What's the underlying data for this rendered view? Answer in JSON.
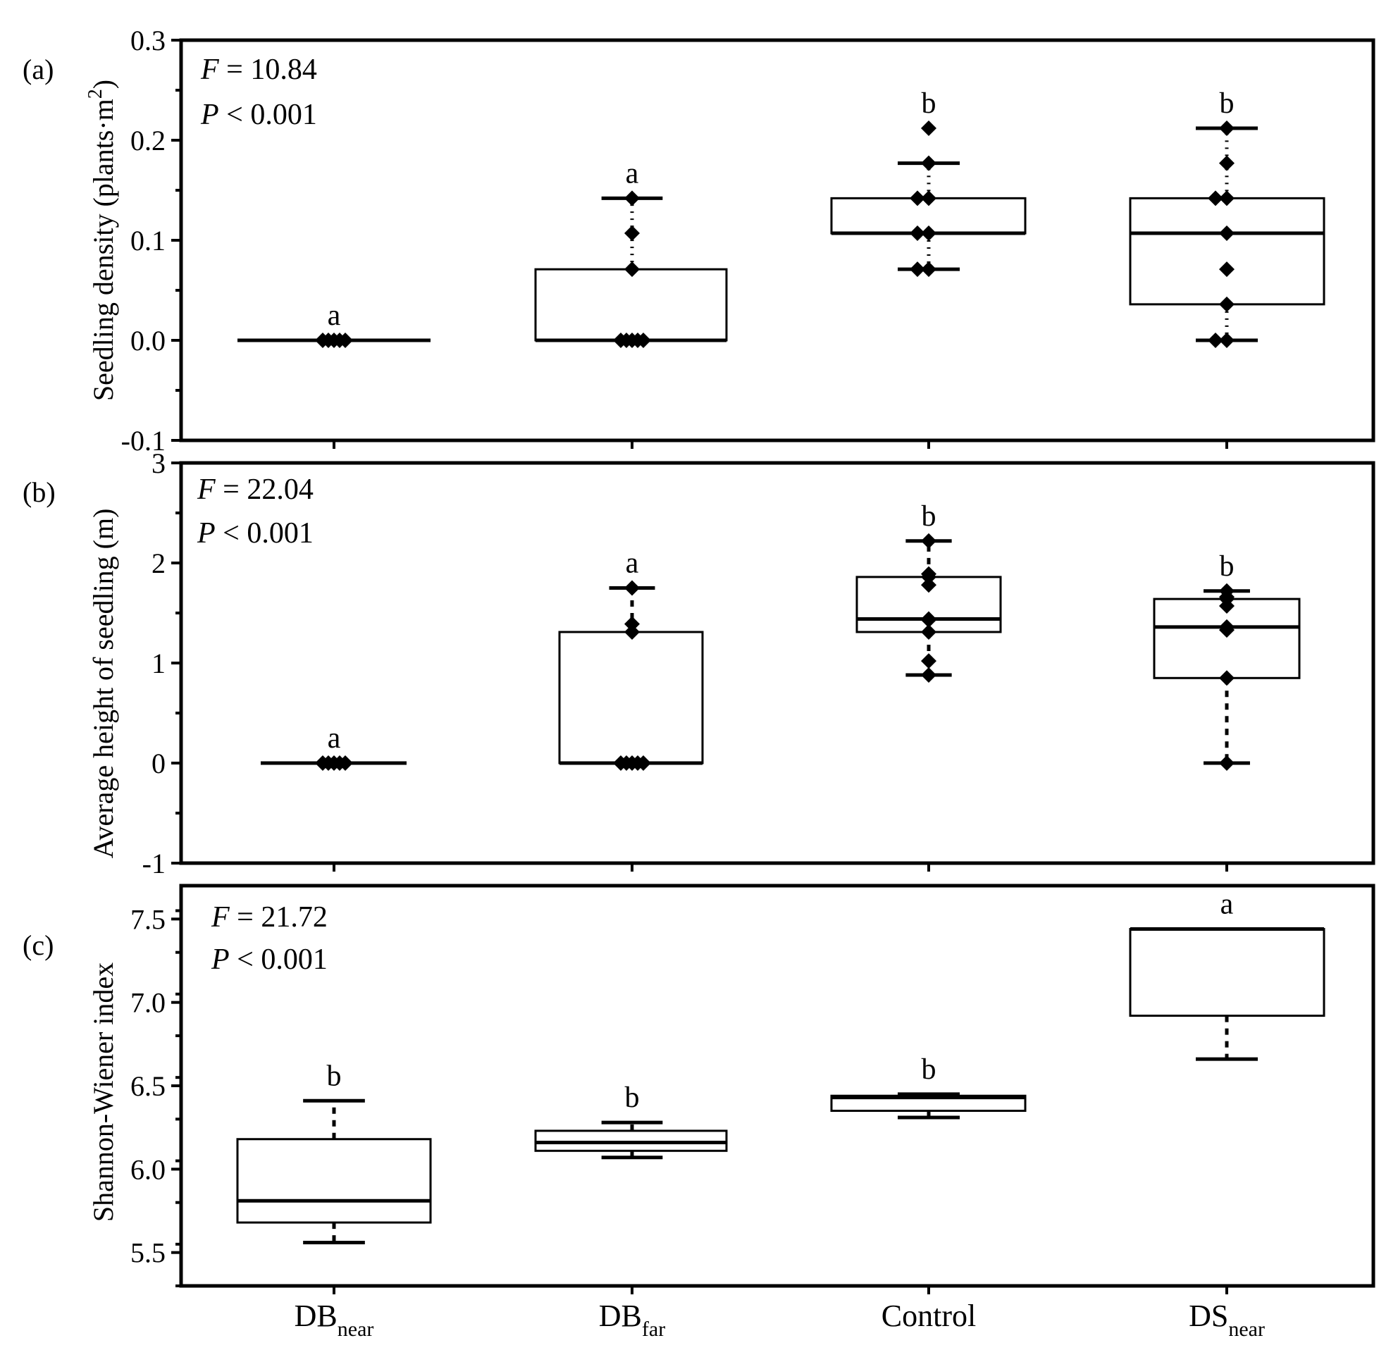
{
  "chart_data": [
    {
      "type": "box",
      "panel_label": "(a)",
      "ylabel_main": "Seedling density (plants·m",
      "ylabel_sup": "2",
      "ylabel_end": ")",
      "ylim": [
        -0.1,
        0.3
      ],
      "yticks": [
        -0.1,
        0.0,
        0.1,
        0.2,
        0.3
      ],
      "ytick_labels": [
        "-0.1",
        "0.0",
        "0.1",
        "0.2",
        "0.3"
      ],
      "minor_step": 0.05,
      "stat_F_sym": "F",
      "stat_F_text": " = 10.84",
      "stat_P_sym": "P",
      "stat_P_text": " < 0.001",
      "whisker_style": "dotted",
      "groups": [
        {
          "q1": 0,
          "median": 0,
          "q3": 0,
          "whisker_low": 0,
          "whisker_high": 0,
          "letter": "a",
          "letter_y": 0.0,
          "points": [
            0,
            0,
            0,
            0,
            0
          ]
        },
        {
          "q1": 0,
          "median": 0,
          "q3": 0.071,
          "whisker_low": 0,
          "whisker_high": 0.142,
          "letter": "a",
          "letter_y": 0.142,
          "points": [
            0,
            0,
            0,
            0,
            0,
            0.071,
            0.107,
            0.142
          ]
        },
        {
          "q1": 0.107,
          "median": 0.107,
          "q3": 0.142,
          "whisker_low": 0.071,
          "whisker_high": 0.177,
          "letter": "b",
          "letter_y": 0.212,
          "points": [
            0.071,
            0.071,
            0.107,
            0.107,
            0.142,
            0.142,
            0.177,
            0.212
          ]
        },
        {
          "q1": 0.036,
          "median": 0.107,
          "q3": 0.142,
          "whisker_low": 0,
          "whisker_high": 0.212,
          "letter": "b",
          "letter_y": 0.212,
          "points": [
            0,
            0,
            0.036,
            0.071,
            0.107,
            0.142,
            0.142,
            0.177,
            0.212
          ]
        }
      ]
    },
    {
      "type": "box",
      "panel_label": "(b)",
      "ylabel_main": "Average height of seedling (m)",
      "ylim": [
        -1,
        3
      ],
      "yticks": [
        -1,
        0,
        1,
        2,
        3
      ],
      "ytick_labels": [
        "-1",
        "0",
        "1",
        "2",
        "3"
      ],
      "minor_step": 0.5,
      "stat_F_sym": "F",
      "stat_F_text": " = 22.04",
      "stat_P_sym": "P",
      "stat_P_text": " < 0.001",
      "whisker_style": "dashed",
      "groups": [
        {
          "q1": 0,
          "median": 0,
          "q3": 0,
          "whisker_low": 0,
          "whisker_high": 0,
          "letter": "a",
          "letter_y": 0.0,
          "points": [
            0,
            0,
            0,
            0,
            0
          ]
        },
        {
          "q1": 0,
          "median": 0,
          "q3": 1.31,
          "whisker_low": 0,
          "whisker_high": 1.75,
          "letter": "a",
          "letter_y": 1.75,
          "points": [
            0,
            0,
            0,
            0,
            0,
            1.31,
            1.39,
            1.75
          ]
        },
        {
          "q1": 1.31,
          "median": 1.44,
          "q3": 1.86,
          "whisker_low": 0.88,
          "whisker_high": 2.22,
          "letter": "b",
          "letter_y": 2.22,
          "points": [
            0.88,
            1.02,
            1.31,
            1.43,
            1.44,
            1.78,
            1.86,
            1.89,
            2.22
          ]
        },
        {
          "q1": 0.85,
          "median": 1.36,
          "q3": 1.64,
          "whisker_low": 0,
          "whisker_high": 1.72,
          "letter": "b",
          "letter_y": 1.72,
          "points": [
            0,
            0.85,
            1.33,
            1.36,
            1.57,
            1.64,
            1.66,
            1.72
          ]
        }
      ]
    },
    {
      "type": "box",
      "panel_label": "(c)",
      "ylabel_main": "Shannon-Wiener index",
      "ylim": [
        5.3,
        7.7
      ],
      "yticks": [
        5.5,
        6.0,
        6.5,
        7.0,
        7.5
      ],
      "ytick_labels": [
        "5.5",
        "6.0",
        "6.5",
        "7.0",
        "7.5"
      ],
      "minor_step": 0.25,
      "stat_F_sym": "F",
      "stat_F_text": " = 21.72",
      "stat_P_sym": "P",
      "stat_P_text": " < 0.001",
      "whisker_style": "dashed",
      "x_categories": [
        {
          "main": "DB",
          "sub": "near"
        },
        {
          "main": "DB",
          "sub": "far"
        },
        {
          "main": "Control",
          "sub": ""
        },
        {
          "main": "DS",
          "sub": "near"
        }
      ],
      "groups": [
        {
          "q1": 5.68,
          "median": 5.81,
          "q3": 6.18,
          "whisker_low": 5.56,
          "whisker_high": 6.41,
          "letter": "b",
          "letter_y": 6.41,
          "points": []
        },
        {
          "q1": 6.11,
          "median": 6.16,
          "q3": 6.23,
          "whisker_low": 6.07,
          "whisker_high": 6.28,
          "letter": "b",
          "letter_y": 6.28,
          "points": []
        },
        {
          "q1": 6.35,
          "median": 6.43,
          "q3": 6.44,
          "whisker_low": 6.31,
          "whisker_high": 6.45,
          "letter": "b",
          "letter_y": 6.45,
          "points": []
        },
        {
          "q1": 6.92,
          "median": 7.44,
          "q3": 7.44,
          "whisker_low": 6.66,
          "whisker_high": 7.44,
          "letter": "a",
          "letter_y": 7.44,
          "points": []
        }
      ]
    }
  ]
}
